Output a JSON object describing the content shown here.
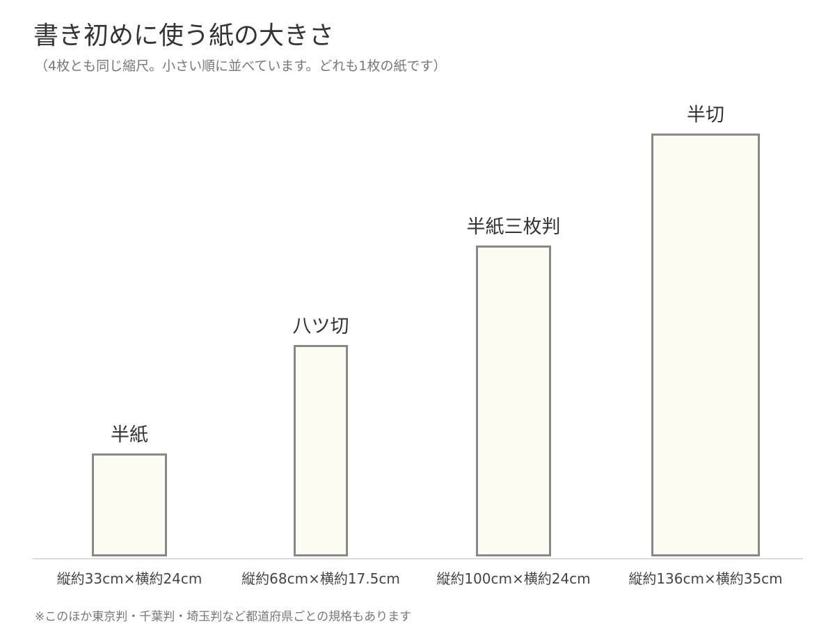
{
  "title": "書き初めに使う紙の大きさ",
  "subtitle": "（4枚とも同じ縮尺。小さい順に並べています。どれも1枚の紙です）",
  "footnote": "※このほか東京判・千葉判・埼玉判など都道府県ごとの規格もあります",
  "colors": {
    "paper_fill": "#fcfcf2",
    "paper_border": "#888888",
    "baseline": "#c0c0c0"
  },
  "chart_data": {
    "type": "bar",
    "unit": "cm",
    "categories": [
      "半紙",
      "八ツ切",
      "半紙三枚判",
      "半切"
    ],
    "papers": [
      {
        "name": "半紙",
        "height_cm": 33,
        "width_cm": 24,
        "size_label": "縦約33cm×横約24cm"
      },
      {
        "name": "八ツ切",
        "height_cm": 68,
        "width_cm": 17.5,
        "size_label": "縦約68cm×横約17.5cm"
      },
      {
        "name": "半紙三枚判",
        "height_cm": 100,
        "width_cm": 24,
        "size_label": "縦約100cm×横約24cm"
      },
      {
        "name": "半切",
        "height_cm": 136,
        "width_cm": 35,
        "size_label": "縦約136cm×横約35cm"
      }
    ],
    "grid": false,
    "legend": "none"
  }
}
